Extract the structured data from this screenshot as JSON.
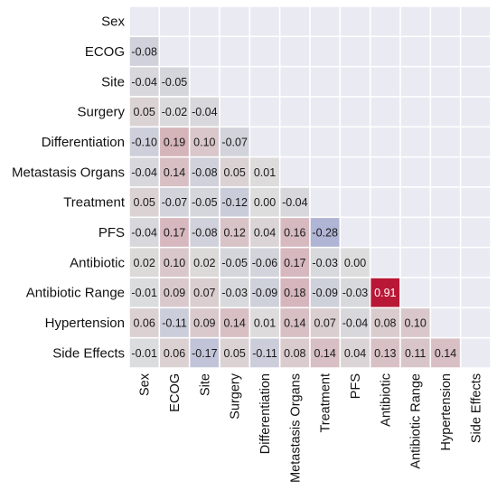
{
  "chart_data": {
    "type": "heatmap",
    "variables": [
      "Sex",
      "ECOG",
      "Site",
      "Surgery",
      "Differentiation",
      "Metastasis Organs",
      "Treatment",
      "PFS",
      "Antibiotic",
      "Antibiotic Range",
      "Hypertension",
      "Side Effects"
    ],
    "triangle": "lower",
    "diagonal_shown": false,
    "values": [
      [
        null,
        null,
        null,
        null,
        null,
        null,
        null,
        null,
        null,
        null,
        null,
        null
      ],
      [
        -0.08,
        null,
        null,
        null,
        null,
        null,
        null,
        null,
        null,
        null,
        null,
        null
      ],
      [
        -0.04,
        -0.05,
        null,
        null,
        null,
        null,
        null,
        null,
        null,
        null,
        null,
        null
      ],
      [
        0.05,
        -0.02,
        -0.04,
        null,
        null,
        null,
        null,
        null,
        null,
        null,
        null,
        null
      ],
      [
        -0.1,
        0.19,
        0.1,
        -0.07,
        null,
        null,
        null,
        null,
        null,
        null,
        null,
        null
      ],
      [
        -0.04,
        0.14,
        -0.08,
        0.05,
        0.01,
        null,
        null,
        null,
        null,
        null,
        null,
        null
      ],
      [
        0.05,
        -0.07,
        -0.05,
        -0.12,
        0.0,
        -0.04,
        null,
        null,
        null,
        null,
        null,
        null
      ],
      [
        -0.04,
        0.17,
        -0.08,
        0.12,
        0.04,
        0.16,
        -0.28,
        null,
        null,
        null,
        null,
        null
      ],
      [
        0.02,
        0.1,
        0.02,
        -0.05,
        -0.06,
        0.17,
        -0.03,
        0.0,
        null,
        null,
        null,
        null
      ],
      [
        -0.01,
        0.09,
        0.07,
        -0.03,
        -0.09,
        0.18,
        -0.09,
        -0.03,
        0.91,
        null,
        null,
        null
      ],
      [
        0.06,
        -0.11,
        0.09,
        0.14,
        0.01,
        0.14,
        0.07,
        -0.04,
        0.08,
        0.1,
        null,
        null
      ],
      [
        -0.01,
        0.06,
        -0.17,
        0.05,
        -0.11,
        0.08,
        0.14,
        0.04,
        0.13,
        0.11,
        0.14,
        null
      ]
    ],
    "value_labels": [
      [],
      [
        "-0.08"
      ],
      [
        "-0.04",
        "-0.05"
      ],
      [
        "0.05",
        "-0.02",
        "-0.04"
      ],
      [
        "-0.10",
        "0.19",
        "0.10",
        "-0.07"
      ],
      [
        "-0.04",
        "0.14",
        "-0.08",
        "0.05",
        "0.01"
      ],
      [
        "0.05",
        "-0.07",
        "-0.05",
        "-0.12",
        "0.00",
        "-0.04"
      ],
      [
        "-0.04",
        "0.17",
        "-0.08",
        "0.12",
        "0.04",
        "0.16",
        "-0.28"
      ],
      [
        "0.02",
        "0.10",
        "0.02",
        "-0.05",
        "-0.06",
        "0.17",
        "-0.03",
        "0.00"
      ],
      [
        "-0.01",
        "0.09",
        "0.07",
        "-0.03",
        "-0.09",
        "0.18",
        "-0.09",
        "-0.03",
        "0.91"
      ],
      [
        "0.06",
        "-0.11",
        "0.09",
        "0.14",
        "0.01",
        "0.14",
        "0.07",
        "-0.04",
        "0.08",
        "0.10"
      ],
      [
        "-0.01",
        "0.06",
        "-0.17",
        "0.05",
        "-0.11",
        "0.08",
        "0.14",
        "0.04",
        "0.13",
        "0.11",
        "0.14"
      ]
    ],
    "color_range": [
      -1,
      1
    ],
    "colormap": "coolwarm",
    "colors": {
      "negative": "#3b4cc0",
      "neutral": "#dddddd",
      "positive": "#b40426",
      "empty_cell": "#eaeaf2",
      "grid": "#ffffff"
    },
    "legend": "none",
    "grid": true,
    "title": "",
    "xlabel": "",
    "ylabel": ""
  }
}
